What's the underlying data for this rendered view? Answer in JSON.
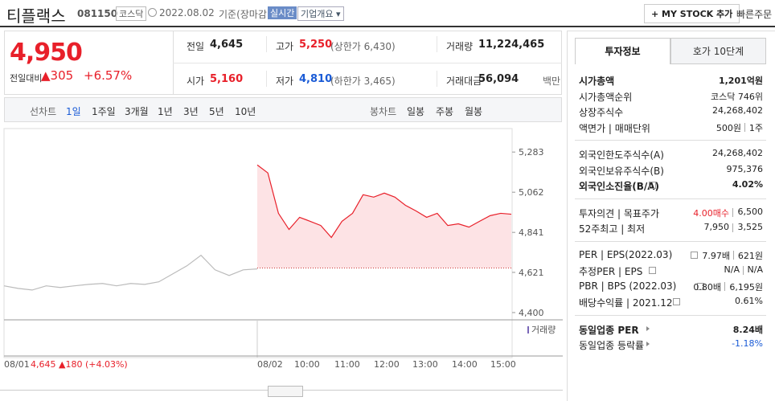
{
  "header": {
    "name": "티플랙스",
    "code": "081150",
    "market": "코스닥",
    "date": "2022.08.02",
    "basis": "기준(장마감)",
    "realtime": "실시간",
    "overview": "기업개요 ▾",
    "mystock": "+ MY STOCK 추가",
    "quick_order": "빠른주문"
  },
  "quote": {
    "price": "4,950",
    "change_label": "전일대비",
    "change": "▲305",
    "change_pct": "+6.57%",
    "rows": [
      [
        {
          "label": "전일",
          "value": "4,645"
        },
        {
          "label": "고가",
          "value": "5,250",
          "note": "(상한가 6,430)"
        },
        {
          "label": "거래량",
          "value": "11,224,465"
        }
      ],
      [
        {
          "label": "시가",
          "value": "5,160"
        },
        {
          "label": "저가",
          "value": "4,810",
          "note": "(하한가 3,465)"
        },
        {
          "label": "거래대금",
          "value": "56,094",
          "note": "백만"
        }
      ]
    ]
  },
  "periods": {
    "line_label": "선차트",
    "line": [
      "1일",
      "1주일",
      "3개월",
      "1년",
      "3년",
      "5년",
      "10년"
    ],
    "candle_label": "봉차트",
    "candle": [
      "일봉",
      "주봉",
      "월봉"
    ]
  },
  "chart_data": {
    "type": "line",
    "ylim": [
      4360,
      5412
    ],
    "yticks": [
      {
        "value": 5283,
        "label": "5,283"
      },
      {
        "value": 5062,
        "label": "5,062"
      },
      {
        "value": 4841,
        "label": "4,841"
      },
      {
        "value": 4621,
        "label": "4,621"
      },
      {
        "value": 4400,
        "label": "4,400"
      }
    ],
    "baseline": 4645,
    "volume_label": "거래량",
    "x_labels": [
      "08/01",
      "08/02",
      "10:00",
      "11:00",
      "12:00",
      "13:00",
      "14:00",
      "15:00"
    ],
    "prev_note": "4,645 ▲180 (+4.03%)",
    "series": [
      {
        "color": "#bbbbbb",
        "values": [
          4547,
          4533,
          4524,
          4547,
          4538,
          4547,
          4555,
          4560,
          4547,
          4560,
          4555,
          4569,
          4613,
          4657,
          4715,
          4635,
          4604,
          4635,
          4640
        ]
      },
      {
        "color": "#e8202a",
        "fill": "#fde3e5",
        "values": [
          5212,
          5168,
          4946,
          4857,
          4924,
          4902,
          4879,
          4813,
          4902,
          4946,
          5048,
          5035,
          5057,
          5035,
          4990,
          4959,
          4924,
          4946,
          4879,
          4888,
          4870,
          4902,
          4933,
          4946,
          4941
        ]
      }
    ]
  },
  "invest": {
    "tabs": [
      "투자정보",
      "호가 10단계"
    ],
    "groups": [
      [
        {
          "label": "시가총액",
          "value": [
            "1,201억원"
          ],
          "bold": true
        },
        {
          "label": "시가총액순위",
          "value": [
            "코스닥 746위"
          ]
        },
        {
          "label": "상장주식수",
          "value": [
            "24,268,402"
          ]
        },
        {
          "label": "액면가 | 매매단위",
          "value": [
            "500원",
            "1주"
          ]
        }
      ],
      [
        {
          "label": "외국인한도주식수(A)",
          "value": [
            "24,268,402"
          ]
        },
        {
          "label": "외국인보유주식수(B)",
          "value": [
            "975,376"
          ]
        },
        {
          "label": "외국인소진율(B/A)",
          "value": [
            "4.02%"
          ],
          "bold": true,
          "info": true
        }
      ],
      [
        {
          "label": "투자의견 | 목표주가",
          "value": [
            "4.00매수",
            "6,500"
          ],
          "red": 0
        },
        {
          "label": "52주최고 | 최저",
          "value": [
            "7,950",
            "3,525"
          ]
        }
      ],
      [
        {
          "label": "PER | EPS(2022.03)",
          "value": [
            "7.97배",
            "621원"
          ],
          "info": true
        },
        {
          "label": "추정PER | EPS",
          "value": [
            "N/A",
            "N/A"
          ],
          "info": true
        },
        {
          "label": "PBR | BPS (2022.03)",
          "value": [
            "0.80배",
            "6,195원"
          ],
          "info": true
        },
        {
          "label": "배당수익률 | 2021.12",
          "value": [
            "0.61%"
          ],
          "info": true
        }
      ],
      [
        {
          "label": "동일업종 PER",
          "value": [
            "8.24배"
          ],
          "bold": true,
          "arrow": true
        },
        {
          "label": "동일업종 등락률",
          "value": [
            "-1.18%"
          ],
          "blue": 0,
          "arrow": true
        }
      ]
    ]
  }
}
